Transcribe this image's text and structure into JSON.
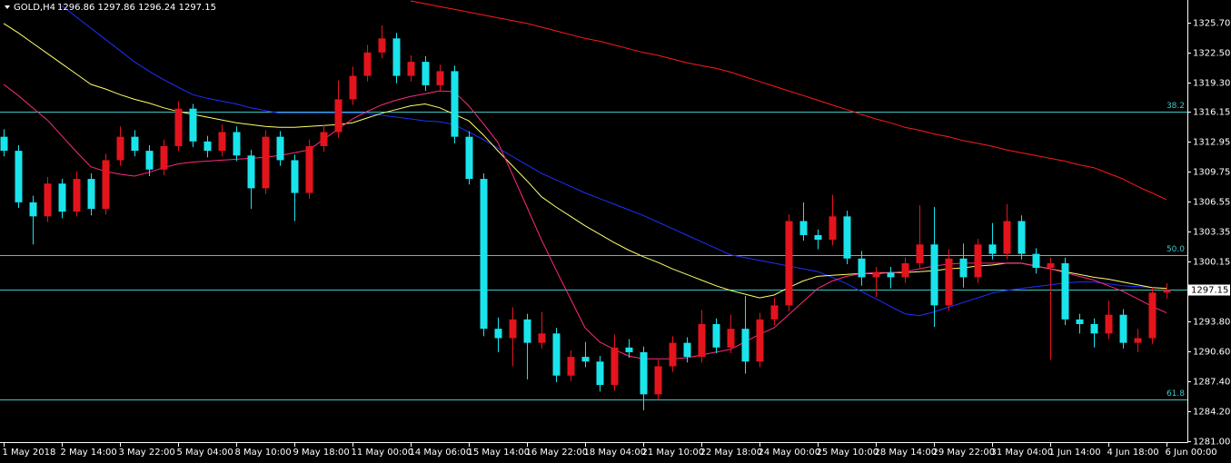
{
  "chart_data": {
    "type": "candlestick",
    "symbol": "GOLD,H4",
    "ohlc_text": "1296.86 1297.86 1296.24 1297.15",
    "ylim": [
      1280.9,
      1328.1
    ],
    "yticks": [
      {
        "value": 1325.7,
        "label": "1325.70"
      },
      {
        "value": 1322.5,
        "label": "1322.50"
      },
      {
        "value": 1319.3,
        "label": "1319.30"
      },
      {
        "value": 1316.15,
        "label": "1316.15"
      },
      {
        "value": 1312.95,
        "label": "1312.95"
      },
      {
        "value": 1309.75,
        "label": "1309.75"
      },
      {
        "value": 1306.55,
        "label": "1306.55"
      },
      {
        "value": 1303.35,
        "label": "1303.35"
      },
      {
        "value": 1300.15,
        "label": "1300.15"
      },
      {
        "value": 1293.8,
        "label": "1293.80"
      },
      {
        "value": 1290.6,
        "label": "1290.60"
      },
      {
        "value": 1287.4,
        "label": "1287.40"
      },
      {
        "value": 1284.2,
        "label": "1284.20"
      },
      {
        "value": 1281,
        "label": "1281.00"
      }
    ],
    "current_price": {
      "value": 1297.15,
      "label": "1297.15"
    },
    "levels": [
      {
        "value": 1316.2,
        "label": "38.2"
      },
      {
        "value": 1300.9,
        "label": "50.0"
      },
      {
        "value": 1285.5,
        "label": "61.8"
      }
    ],
    "level_color": "#3fc6c6",
    "up_color": "#e3141c",
    "down_color": "#19e4ec",
    "categories": [
      "1 May 2018",
      null,
      null,
      null,
      "2 May 14:00",
      null,
      null,
      null,
      "3 May 22:00",
      null,
      null,
      null,
      "5 May 04:00",
      null,
      null,
      null,
      "8 May 10:00",
      null,
      null,
      null,
      "9 May 18:00",
      null,
      null,
      null,
      "11 May 00:00",
      null,
      null,
      null,
      "14 May 06:00",
      null,
      null,
      null,
      "15 May 14:00",
      null,
      null,
      null,
      "16 May 22:00",
      null,
      null,
      null,
      "18 May 04:00",
      null,
      null,
      null,
      "21 May 10:00",
      null,
      null,
      null,
      "22 May 18:00",
      null,
      null,
      null,
      "24 May 00:00",
      null,
      null,
      null,
      "25 May 10:00",
      null,
      null,
      null,
      "28 May 14:00",
      null,
      null,
      null,
      "29 May 22:00",
      null,
      null,
      null,
      "31 May 04:00",
      null,
      null,
      null,
      "1 Jun 14:00",
      null,
      null,
      null,
      "4 Jun 18:00",
      null,
      null,
      null,
      "6 Jun 00:00"
    ],
    "candles": [
      [
        1313.5,
        1314.3,
        1311.4,
        1312.0
      ],
      [
        1312.0,
        1312.6,
        1305.9,
        1306.5
      ],
      [
        1306.5,
        1307.2,
        1302.0,
        1305.0
      ],
      [
        1305.0,
        1309.2,
        1304.4,
        1308.5
      ],
      [
        1308.5,
        1309.0,
        1304.8,
        1305.5
      ],
      [
        1305.5,
        1309.8,
        1305.0,
        1309.0
      ],
      [
        1309.0,
        1309.6,
        1305.1,
        1305.8
      ],
      [
        1305.8,
        1311.7,
        1305.2,
        1311.0
      ],
      [
        1311.0,
        1314.6,
        1310.4,
        1313.5
      ],
      [
        1313.5,
        1314.2,
        1311.4,
        1312.0
      ],
      [
        1312.0,
        1312.6,
        1309.3,
        1310.0
      ],
      [
        1310.0,
        1313.2,
        1309.4,
        1312.5
      ],
      [
        1312.5,
        1317.3,
        1312.0,
        1316.5
      ],
      [
        1316.5,
        1317.0,
        1312.4,
        1313.0
      ],
      [
        1313.0,
        1313.6,
        1311.3,
        1312.0
      ],
      [
        1312.0,
        1314.8,
        1311.4,
        1314.0
      ],
      [
        1314.0,
        1314.6,
        1310.9,
        1311.5
      ],
      [
        1311.5,
        1312.1,
        1305.8,
        1308.0
      ],
      [
        1308.0,
        1314.2,
        1307.4,
        1313.5
      ],
      [
        1313.5,
        1314.1,
        1310.4,
        1311.0
      ],
      [
        1311.0,
        1311.6,
        1304.5,
        1307.5
      ],
      [
        1307.5,
        1313.2,
        1306.9,
        1312.5
      ],
      [
        1312.5,
        1314.8,
        1311.9,
        1314.0
      ],
      [
        1314.0,
        1319.5,
        1313.4,
        1317.5
      ],
      [
        1317.5,
        1321.0,
        1316.9,
        1320.0
      ],
      [
        1320.0,
        1323.3,
        1319.4,
        1322.5
      ],
      [
        1322.5,
        1325.4,
        1321.9,
        1324.0
      ],
      [
        1324.0,
        1324.6,
        1319.2,
        1320.0
      ],
      [
        1320.0,
        1322.2,
        1319.4,
        1321.5
      ],
      [
        1321.5,
        1322.1,
        1318.4,
        1319.0
      ],
      [
        1319.0,
        1321.2,
        1318.4,
        1320.5
      ],
      [
        1320.5,
        1321.1,
        1312.8,
        1313.5
      ],
      [
        1313.5,
        1314.1,
        1308.4,
        1309.0
      ],
      [
        1309.0,
        1309.6,
        1292.2,
        1293.0
      ],
      [
        1293.0,
        1294.2,
        1290.5,
        1292.0
      ],
      [
        1292.0,
        1295.3,
        1289.0,
        1294.0
      ],
      [
        1294.0,
        1294.6,
        1287.6,
        1291.5
      ],
      [
        1291.5,
        1294.8,
        1290.9,
        1292.5
      ],
      [
        1292.5,
        1293.1,
        1287.3,
        1288.0
      ],
      [
        1288.0,
        1290.7,
        1287.4,
        1290.0
      ],
      [
        1290.0,
        1291.6,
        1288.9,
        1289.5
      ],
      [
        1289.5,
        1290.1,
        1286.3,
        1287.0
      ],
      [
        1287.0,
        1292.4,
        1286.4,
        1291.0
      ],
      [
        1291.0,
        1291.9,
        1289.9,
        1290.5
      ],
      [
        1290.5,
        1291.1,
        1284.3,
        1286.0
      ],
      [
        1286.0,
        1289.7,
        1285.4,
        1289.0
      ],
      [
        1289.0,
        1292.2,
        1288.4,
        1291.5
      ],
      [
        1291.5,
        1292.1,
        1289.4,
        1290.0
      ],
      [
        1290.0,
        1295.0,
        1289.4,
        1293.5
      ],
      [
        1293.5,
        1294.1,
        1290.4,
        1291.0
      ],
      [
        1291.0,
        1294.5,
        1290.4,
        1293.0
      ],
      [
        1293.0,
        1296.5,
        1288.2,
        1289.5
      ],
      [
        1289.5,
        1294.7,
        1288.9,
        1294.0
      ],
      [
        1294.0,
        1296.3,
        1293.4,
        1295.5
      ],
      [
        1295.5,
        1305.2,
        1294.9,
        1304.5
      ],
      [
        1304.5,
        1306.5,
        1302.4,
        1303.0
      ],
      [
        1303.0,
        1303.6,
        1301.5,
        1302.5
      ],
      [
        1302.5,
        1307.3,
        1301.9,
        1305.0
      ],
      [
        1305.0,
        1305.6,
        1299.9,
        1300.5
      ],
      [
        1300.5,
        1301.3,
        1297.6,
        1298.5
      ],
      [
        1298.5,
        1299.6,
        1296.4,
        1299.0
      ],
      [
        1299.0,
        1299.6,
        1297.3,
        1298.5
      ],
      [
        1298.5,
        1300.6,
        1297.9,
        1300.0
      ],
      [
        1300.0,
        1306.2,
        1299.4,
        1302.0
      ],
      [
        1302.0,
        1306.0,
        1293.2,
        1295.5
      ],
      [
        1295.5,
        1301.5,
        1294.9,
        1300.5
      ],
      [
        1300.5,
        1302.1,
        1297.4,
        1298.5
      ],
      [
        1298.5,
        1302.6,
        1297.9,
        1302.0
      ],
      [
        1302.0,
        1304.3,
        1300.4,
        1301.0
      ],
      [
        1301.0,
        1306.3,
        1300.4,
        1304.5
      ],
      [
        1304.5,
        1305.1,
        1300.4,
        1301.0
      ],
      [
        1301.0,
        1301.6,
        1298.9,
        1299.5
      ],
      [
        1299.5,
        1300.6,
        1289.7,
        1300.0
      ],
      [
        1300.0,
        1300.6,
        1293.4,
        1294.0
      ],
      [
        1294.0,
        1294.6,
        1292.5,
        1293.5
      ],
      [
        1293.5,
        1294.1,
        1291.0,
        1292.5
      ],
      [
        1292.5,
        1296.0,
        1291.9,
        1294.5
      ],
      [
        1294.5,
        1295.1,
        1290.9,
        1291.5
      ],
      [
        1291.5,
        1293.0,
        1290.5,
        1292.0
      ],
      [
        1292.0,
        1297.4,
        1291.4,
        1296.86
      ],
      [
        1296.86,
        1297.86,
        1296.24,
        1297.15
      ]
    ],
    "lines": [
      {
        "color": "#ff1a1a",
        "values": [
          null,
          null,
          null,
          null,
          null,
          null,
          null,
          null,
          null,
          null,
          null,
          null,
          null,
          null,
          null,
          null,
          null,
          null,
          null,
          null,
          null,
          null,
          null,
          null,
          null,
          null,
          null,
          null,
          1328.0,
          1327.7,
          1327.4,
          1327.1,
          1326.8,
          1326.5,
          1326.2,
          1325.9,
          1325.6,
          1325.2,
          1324.8,
          1324.4,
          1324.0,
          1323.7,
          1323.3,
          1322.9,
          1322.5,
          1322.2,
          1321.8,
          1321.4,
          1321.1,
          1320.8,
          1320.4,
          1319.9,
          1319.4,
          1318.9,
          1318.4,
          1317.9,
          1317.4,
          1316.9,
          1316.4,
          1315.9,
          1315.4,
          1315.0,
          1314.5,
          1314.2,
          1313.8,
          1313.5,
          1313.1,
          1312.8,
          1312.5,
          1312.1,
          1311.8,
          1311.5,
          1311.2,
          1310.9,
          1310.5,
          1310.2,
          1309.6,
          1309.0,
          1308.2,
          1307.5,
          1306.8
        ]
      },
      {
        "color": "#1f2fff",
        "values": [
          null,
          null,
          null,
          null,
          1327.5,
          1326.3,
          1325.1,
          1323.9,
          1322.7,
          1321.5,
          1320.5,
          1319.6,
          1318.8,
          1318.0,
          1317.6,
          1317.3,
          1317.0,
          1316.6,
          1316.3,
          1316.0,
          1316.0,
          1316.0,
          1316.0,
          1316.0,
          1316.0,
          1316.0,
          1315.8,
          1315.6,
          1315.4,
          1315.2,
          1315.1,
          1314.8,
          1314.0,
          1313.2,
          1312.3,
          1311.4,
          1310.5,
          1309.6,
          1308.9,
          1308.2,
          1307.5,
          1306.9,
          1306.3,
          1305.7,
          1305.1,
          1304.4,
          1303.7,
          1303.0,
          1302.3,
          1301.6,
          1300.9,
          1300.6,
          1300.3,
          1300.0,
          1299.7,
          1299.4,
          1299.1,
          1298.5,
          1297.8,
          1297.0,
          1296.2,
          1295.4,
          1294.6,
          1294.4,
          1294.8,
          1295.3,
          1295.8,
          1296.3,
          1296.8,
          1297.1,
          1297.3,
          1297.5,
          1297.7,
          1297.9,
          1298.0,
          1298.0,
          1297.8,
          1297.6,
          1297.5,
          1297.4,
          1297.3
        ]
      },
      {
        "color": "#ffff66",
        "values": [
          1325.6,
          1324.6,
          1323.5,
          1322.4,
          1321.3,
          1320.2,
          1319.1,
          1318.6,
          1318.0,
          1317.5,
          1317.1,
          1316.6,
          1316.2,
          1315.9,
          1315.6,
          1315.3,
          1315.0,
          1314.8,
          1314.6,
          1314.5,
          1314.5,
          1314.6,
          1314.7,
          1314.8,
          1315.0,
          1315.5,
          1316.0,
          1316.4,
          1316.8,
          1317.0,
          1316.6,
          1315.9,
          1315.2,
          1313.7,
          1312.0,
          1310.4,
          1308.8,
          1307.1,
          1306.0,
          1305.0,
          1304.0,
          1303.1,
          1302.2,
          1301.4,
          1300.7,
          1300.1,
          1299.4,
          1298.8,
          1298.2,
          1297.6,
          1297.1,
          1296.7,
          1296.3,
          1296.6,
          1297.4,
          1298.1,
          1298.6,
          1298.7,
          1298.8,
          1298.9,
          1298.9,
          1299.0,
          1299.0,
          1299.1,
          1299.2,
          1299.4,
          1299.5,
          1299.7,
          1299.8,
          1300.0,
          1300.0,
          1299.7,
          1299.4,
          1299.1,
          1298.8,
          1298.5,
          1298.3,
          1298.0,
          1297.7,
          1297.4,
          1297.3
        ]
      },
      {
        "color": "#ff2a7f",
        "values": [
          1319.1,
          1317.9,
          1316.6,
          1315.3,
          1313.6,
          1311.9,
          1310.3,
          1309.8,
          1309.5,
          1309.3,
          1309.7,
          1310.2,
          1310.6,
          1310.8,
          1310.9,
          1311.0,
          1311.1,
          1311.2,
          1311.3,
          1311.5,
          1311.8,
          1312.1,
          1313.2,
          1314.3,
          1315.4,
          1316.2,
          1316.9,
          1317.4,
          1317.8,
          1318.1,
          1318.4,
          1318.3,
          1316.8,
          1314.9,
          1312.9,
          1309.5,
          1306.0,
          1302.5,
          1299.3,
          1296.2,
          1293.1,
          1291.6,
          1290.8,
          1290.1,
          1289.8,
          1289.8,
          1289.8,
          1289.9,
          1290.2,
          1290.5,
          1290.8,
          1291.6,
          1292.4,
          1293.1,
          1294.5,
          1295.9,
          1297.3,
          1298.1,
          1298.6,
          1298.9,
          1299.0,
          1299.0,
          1299.1,
          1299.4,
          1299.7,
          1299.9,
          1300.0,
          1300.0,
          1300.0,
          1300.0,
          1300.0,
          1299.7,
          1299.4,
          1299.0,
          1298.6,
          1298.2,
          1297.6,
          1297.0,
          1296.2,
          1295.4,
          1294.7
        ]
      }
    ]
  }
}
